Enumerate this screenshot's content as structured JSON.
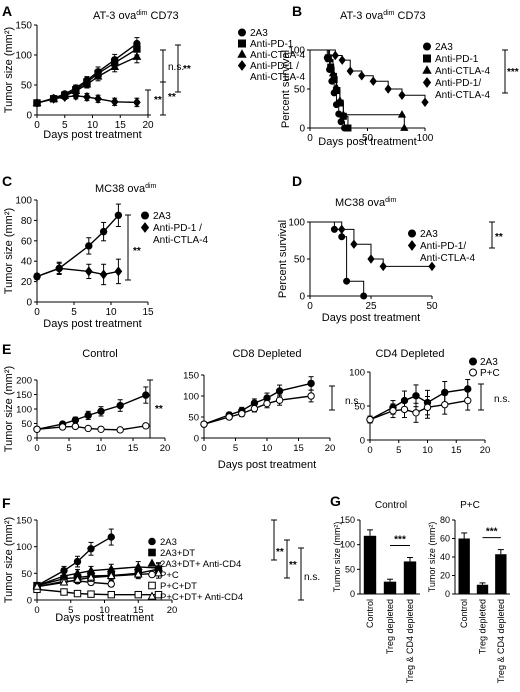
{
  "chart_data": [
    {
      "panel": "A",
      "type": "line",
      "title": "AT-3 ova",
      "title_sup": "dim",
      "title_tail": " CD73",
      "xlabel": "Days post treatment",
      "ylabel": "Tumor size (mm²)",
      "xlim": [
        0,
        20
      ],
      "ylim": [
        0,
        150
      ],
      "xticks": [
        0,
        5,
        10,
        15,
        20
      ],
      "yticks": [
        0,
        50,
        100,
        150
      ],
      "series": [
        {
          "name": "2A3",
          "marker": "circle-filled",
          "x": [
            0,
            3,
            5,
            7,
            9,
            11,
            14,
            18
          ],
          "y": [
            20,
            28,
            35,
            45,
            58,
            72,
            92,
            119
          ],
          "err": [
            3,
            3,
            4,
            5,
            6,
            8,
            9,
            10
          ]
        },
        {
          "name": "Anti-PD-1",
          "marker": "square-filled",
          "x": [
            0,
            3,
            5,
            7,
            9,
            11,
            14,
            18
          ],
          "y": [
            20,
            27,
            33,
            42,
            55,
            69,
            87,
            110
          ],
          "err": [
            3,
            3,
            4,
            5,
            6,
            7,
            9,
            10
          ]
        },
        {
          "name": "Anti-CTLA-4",
          "marker": "triangle-filled",
          "x": [
            0,
            3,
            5,
            7,
            9,
            11,
            14,
            18
          ],
          "y": [
            20,
            27,
            32,
            40,
            51,
            64,
            80,
            97
          ],
          "err": [
            3,
            3,
            4,
            5,
            6,
            7,
            8,
            10
          ]
        },
        {
          "name": "Anti-PD-1 / Anti-CTLA-4",
          "marker": "diamond-filled",
          "x": [
            0,
            3,
            5,
            7,
            9,
            11,
            14,
            18
          ],
          "y": [
            20,
            27,
            30,
            32,
            30,
            27,
            22,
            21
          ],
          "err": [
            3,
            3,
            4,
            5,
            6,
            6,
            6,
            7
          ]
        }
      ],
      "significance": [
        "n.s.",
        "**",
        "**",
        "**"
      ]
    },
    {
      "panel": "B",
      "type": "line",
      "subtype": "survival",
      "title": "AT-3 ova",
      "title_sup": "dim",
      "title_tail": " CD73",
      "xlabel": "Days post treatment",
      "ylabel": "Percent survival",
      "xlim": [
        0,
        100
      ],
      "ylim": [
        0,
        100
      ],
      "xticks": [
        0,
        50,
        100
      ],
      "yticks": [
        0,
        50,
        100
      ],
      "series": [
        {
          "name": "2A3",
          "marker": "circle-filled",
          "x": [
            0,
            15,
            17,
            19,
            21,
            23,
            25,
            27,
            30
          ],
          "y": [
            100,
            90,
            75,
            60,
            45,
            30,
            18,
            8,
            0
          ]
        },
        {
          "name": "Anti-PD-1",
          "marker": "square-filled",
          "x": [
            0,
            16,
            18,
            21,
            23,
            26,
            29,
            33
          ],
          "y": [
            100,
            90,
            78,
            62,
            48,
            32,
            15,
            0
          ]
        },
        {
          "name": "Anti-CTLA-4",
          "marker": "triangle-filled",
          "x": [
            0,
            17,
            20,
            23,
            26,
            29,
            80,
            82
          ],
          "y": [
            100,
            88,
            70,
            52,
            35,
            17,
            17,
            0
          ]
        },
        {
          "name": "Anti-PD-1/ Anti-CTLA-4",
          "marker": "diamond-filled",
          "x": [
            0,
            22,
            28,
            35,
            45,
            55,
            68,
            80,
            100
          ],
          "y": [
            100,
            93,
            87,
            73,
            67,
            60,
            50,
            42,
            33
          ]
        }
      ],
      "significance": [
        "***"
      ]
    },
    {
      "panel": "C",
      "type": "line",
      "title": "MC38 ova",
      "title_sup": "dim",
      "title_tail": "",
      "xlabel": "Days post treatment",
      "ylabel": "Tumor size (mm²)",
      "xlim": [
        0,
        15
      ],
      "ylim": [
        0,
        100
      ],
      "xticks": [
        0,
        5,
        10,
        15
      ],
      "yticks": [
        0,
        20,
        40,
        60,
        80,
        100
      ],
      "series": [
        {
          "name": "2A3",
          "marker": "circle-filled",
          "x": [
            0,
            3,
            7,
            9,
            11
          ],
          "y": [
            25,
            33,
            55,
            69,
            85
          ],
          "err": [
            3,
            5,
            8,
            9,
            11
          ]
        },
        {
          "name": "Anti-PD-1 / Anti-CTLA-4",
          "marker": "diamond-filled",
          "x": [
            0,
            3,
            7,
            9,
            11
          ],
          "y": [
            25,
            33,
            30,
            27,
            30
          ],
          "err": [
            3,
            6,
            7,
            10,
            12
          ]
        }
      ],
      "significance": [
        "**"
      ]
    },
    {
      "panel": "D",
      "type": "line",
      "subtype": "survival",
      "title": "MC38 ova",
      "title_sup": "dim",
      "title_tail": "",
      "xlabel": "Days post treatment",
      "ylabel": "Percent survival",
      "xlim": [
        0,
        50
      ],
      "ylim": [
        0,
        100
      ],
      "xticks": [
        0,
        25,
        50
      ],
      "yticks": [
        0,
        50,
        100
      ],
      "series": [
        {
          "name": "2A3",
          "marker": "circle-filled",
          "x": [
            0,
            10,
            13,
            15,
            22
          ],
          "y": [
            100,
            90,
            80,
            20,
            0
          ]
        },
        {
          "name": "Anti-PD-1/ Anti-CTLA-4",
          "marker": "diamond-filled",
          "x": [
            0,
            13,
            18,
            25,
            30,
            50
          ],
          "y": [
            100,
            90,
            70,
            50,
            40,
            40
          ]
        }
      ],
      "significance": [
        "**"
      ]
    },
    {
      "panel": "E",
      "type": "line",
      "title": "Control",
      "xlabel": "",
      "ylabel": "Tumor size (mm²)",
      "xlim": [
        0,
        20
      ],
      "ylim": [
        0,
        200
      ],
      "xticks": [
        0,
        5,
        10,
        15,
        20
      ],
      "yticks": [
        0,
        50,
        100,
        150,
        200
      ],
      "series": [
        {
          "name": "2A3",
          "marker": "circle-filled",
          "x": [
            0,
            4,
            6,
            8,
            10,
            13,
            17
          ],
          "y": [
            30,
            48,
            62,
            78,
            92,
            112,
            148
          ],
          "err": [
            4,
            8,
            10,
            14,
            16,
            20,
            28
          ]
        },
        {
          "name": "P+C",
          "marker": "circle-open",
          "x": [
            0,
            4,
            6,
            8,
            10,
            13,
            17
          ],
          "y": [
            30,
            38,
            40,
            33,
            30,
            28,
            42
          ],
          "err": [
            4,
            5,
            5,
            4,
            4,
            4,
            8
          ]
        }
      ],
      "significance": [
        "**"
      ]
    },
    {
      "panel": "E",
      "type": "line",
      "title": "CD8 Depleted",
      "xlabel": "Days post treatment",
      "ylabel": "",
      "xlim": [
        0,
        20
      ],
      "ylim": [
        0,
        150
      ],
      "xticks": [
        0,
        5,
        10,
        15,
        20
      ],
      "yticks": [
        0,
        50,
        100,
        150
      ],
      "series": [
        {
          "name": "2A3",
          "marker": "circle-filled",
          "x": [
            0,
            4,
            6,
            8,
            10,
            12,
            17
          ],
          "y": [
            33,
            55,
            65,
            83,
            95,
            112,
            130
          ],
          "err": [
            4,
            6,
            8,
            10,
            12,
            14,
            16
          ]
        },
        {
          "name": "P+C",
          "marker": "circle-open",
          "x": [
            0,
            4,
            6,
            8,
            10,
            12,
            17
          ],
          "y": [
            33,
            50,
            58,
            70,
            82,
            90,
            100
          ],
          "err": [
            4,
            6,
            7,
            8,
            10,
            12,
            14
          ]
        }
      ],
      "significance": [
        "n.s."
      ]
    },
    {
      "panel": "E",
      "type": "line",
      "title": "CD4 Depleted",
      "xlabel": "",
      "ylabel": "",
      "xlim": [
        0,
        20
      ],
      "ylim": [
        0,
        100
      ],
      "xticks": [
        0,
        5,
        10,
        15,
        20
      ],
      "yticks": [
        0,
        50,
        100
      ],
      "series": [
        {
          "name": "2A3",
          "marker": "circle-filled",
          "x": [
            0,
            4,
            6,
            8,
            10,
            13,
            17
          ],
          "y": [
            30,
            48,
            58,
            65,
            55,
            70,
            75
          ],
          "err": [
            5,
            10,
            14,
            16,
            18,
            16,
            14
          ]
        },
        {
          "name": "P+C",
          "marker": "circle-open",
          "x": [
            0,
            4,
            6,
            8,
            10,
            13,
            17
          ],
          "y": [
            30,
            43,
            45,
            40,
            48,
            52,
            58
          ],
          "err": [
            5,
            10,
            12,
            14,
            16,
            14,
            14
          ]
        }
      ],
      "significance": [
        "n.s."
      ]
    },
    {
      "panel": "F",
      "type": "line",
      "xlabel": "Days post treatment",
      "ylabel": "Tumor size (mm²)",
      "xlim": [
        0,
        20
      ],
      "ylim": [
        0,
        150
      ],
      "xticks": [
        0,
        5,
        10,
        15,
        20
      ],
      "yticks": [
        0,
        50,
        100,
        150
      ],
      "series": [
        {
          "name": "2A3",
          "marker": "circle-filled",
          "x": [
            0,
            4,
            6,
            8,
            11
          ],
          "y": [
            27,
            55,
            72,
            96,
            118
          ],
          "err": [
            4,
            8,
            10,
            12,
            15
          ]
        },
        {
          "name": "2A3+DT",
          "marker": "square-filled",
          "x": [
            0,
            4,
            6,
            8,
            11,
            15,
            18
          ],
          "y": [
            27,
            40,
            42,
            45,
            46,
            50,
            58
          ],
          "err": [
            4,
            6,
            6,
            7,
            8,
            8,
            10
          ]
        },
        {
          "name": "2A3+DT+ Anti-CD4",
          "marker": "triangle-filled",
          "x": [
            0,
            4,
            6,
            8,
            11,
            15,
            18
          ],
          "y": [
            27,
            45,
            50,
            55,
            58,
            62,
            60
          ],
          "err": [
            4,
            6,
            7,
            8,
            9,
            10,
            10
          ]
        },
        {
          "name": "P+C",
          "marker": "circle-open",
          "x": [
            0,
            4,
            6,
            8,
            11
          ],
          "y": [
            25,
            35,
            36,
            33,
            30
          ],
          "err": [
            3,
            5,
            5,
            5,
            5
          ]
        },
        {
          "name": "P+C+DT",
          "marker": "square-open",
          "x": [
            0,
            4,
            6,
            8,
            11,
            15,
            18
          ],
          "y": [
            20,
            15,
            12,
            11,
            10,
            10,
            10
          ],
          "err": [
            3,
            3,
            2,
            2,
            2,
            2,
            2
          ]
        },
        {
          "name": "P+C+DT+ Anti-CD4",
          "marker": "triangle-open",
          "x": [
            0,
            4,
            6,
            8,
            11,
            15,
            18
          ],
          "y": [
            25,
            33,
            38,
            42,
            45,
            48,
            50
          ],
          "err": [
            3,
            5,
            6,
            7,
            8,
            8,
            9
          ]
        }
      ],
      "significance": [
        "**",
        "**",
        "n.s."
      ]
    },
    {
      "panel": "G",
      "type": "bar",
      "title": "Control",
      "ylabel": "Tumor size (mm²)",
      "ylim": [
        0,
        150
      ],
      "yticks": [
        0,
        50,
        100,
        150
      ],
      "categories": [
        "Control",
        "Treg depleted",
        "Treg & CD4 depleted"
      ],
      "values": [
        118,
        25,
        66
      ],
      "err": [
        12,
        5,
        8
      ],
      "significance": [
        "***"
      ]
    },
    {
      "panel": "G",
      "type": "bar",
      "title": "P+C",
      "ylabel": "Tumor size (mm²)",
      "ylim": [
        0,
        80
      ],
      "yticks": [
        0,
        20,
        40,
        60,
        80
      ],
      "categories": [
        "Control",
        "Treg depleted",
        "Treg & CD4 depleted"
      ],
      "values": [
        60,
        10,
        43
      ],
      "err": [
        6,
        2,
        5
      ],
      "significance": [
        "***"
      ]
    }
  ],
  "legend_E": [
    {
      "name": "2A3",
      "marker": "circle-filled"
    },
    {
      "name": "P+C",
      "marker": "circle-open"
    }
  ],
  "panel_labels": [
    "A",
    "B",
    "C",
    "D",
    "E",
    "F",
    "G"
  ]
}
